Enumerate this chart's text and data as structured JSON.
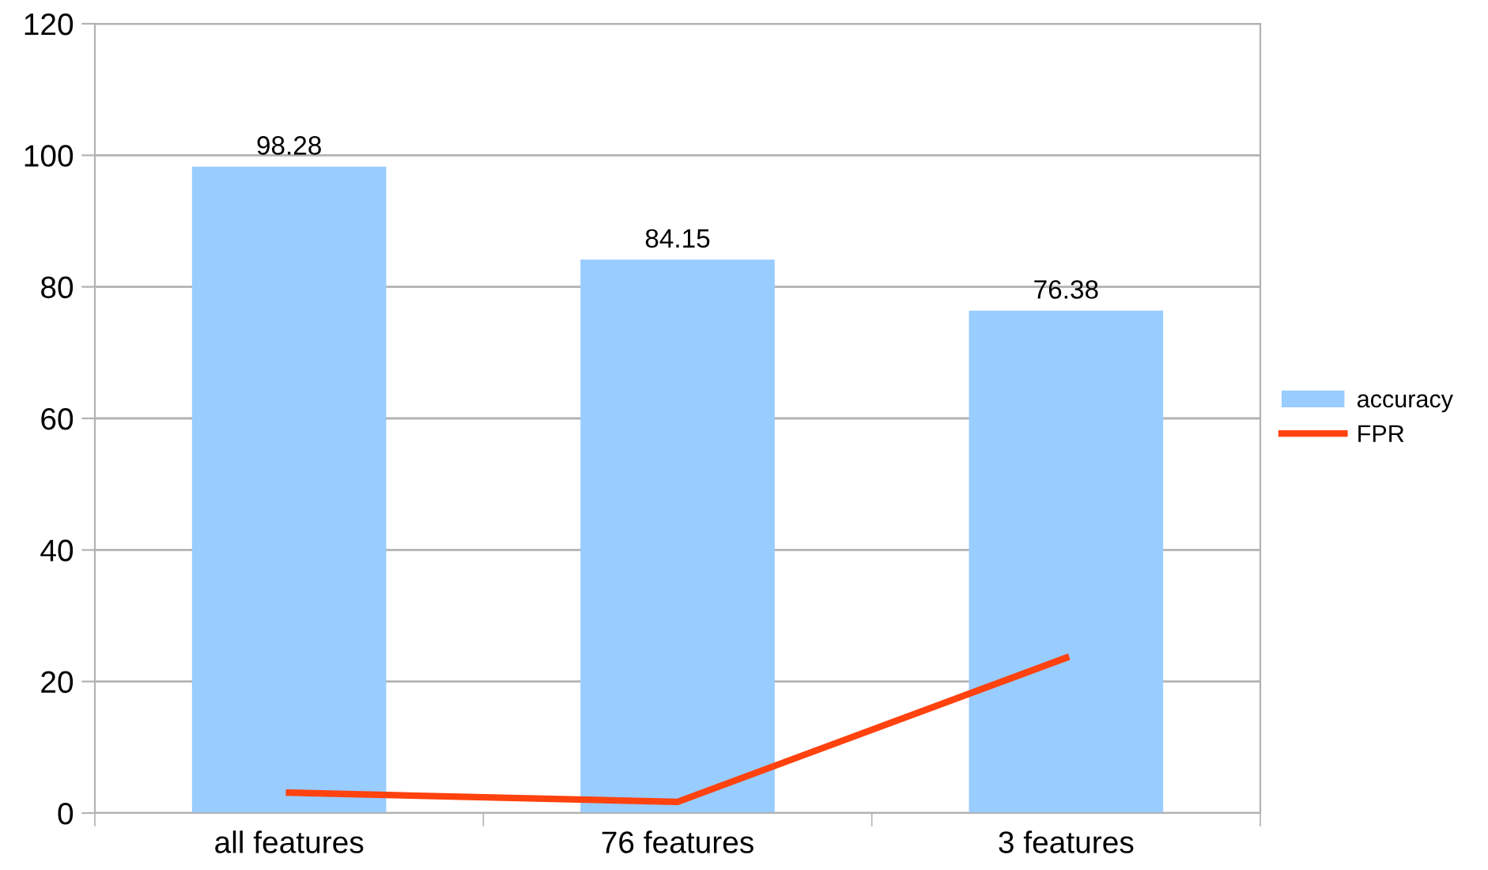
{
  "chart_data": {
    "type": "bar",
    "categories": [
      "all features",
      "76 features",
      "3 features"
    ],
    "series": [
      {
        "name": "accuracy",
        "color": "#99ccff",
        "values": [
          98.28,
          84.15,
          76.38
        ],
        "value_labels": [
          "98.28",
          "84.15",
          "76.38"
        ]
      },
      {
        "name": "FPR",
        "type": "line",
        "color": "#ff420e",
        "values": [
          3.1,
          1.7,
          23.6
        ]
      }
    ],
    "ylim": [
      0,
      120
    ],
    "yticks": [
      0,
      20,
      40,
      60,
      80,
      100,
      120
    ],
    "grid": "y",
    "legend": "right",
    "marker": "none",
    "line_style": "solid"
  }
}
